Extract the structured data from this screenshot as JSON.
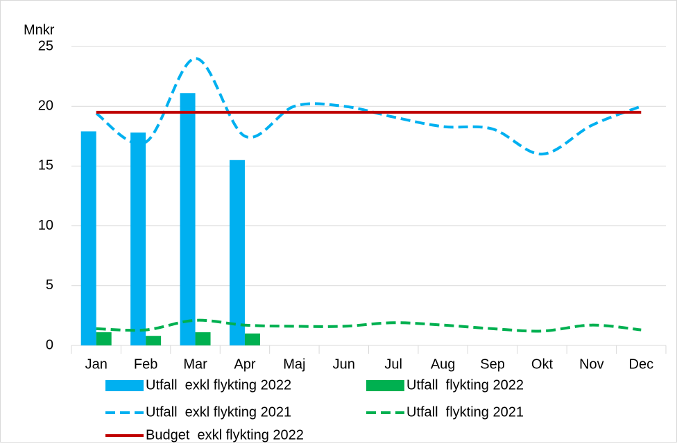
{
  "chart_data": {
    "type": "bar",
    "y_label": "Mnkr",
    "categories": [
      "Jan",
      "Feb",
      "Mar",
      "Apr",
      "Maj",
      "Jun",
      "Jul",
      "Aug",
      "Sep",
      "Okt",
      "Nov",
      "Dec"
    ],
    "ylim": [
      0,
      25
    ],
    "yticks": [
      0,
      5,
      10,
      15,
      20,
      25
    ],
    "grid": true,
    "series": [
      {
        "name": "Utfall  exkl flykting 2022",
        "type": "bar",
        "color": "#00b0f0",
        "values": [
          17.9,
          17.8,
          21.1,
          15.5,
          null,
          null,
          null,
          null,
          null,
          null,
          null,
          null
        ]
      },
      {
        "name": "Utfall  flykting 2022",
        "type": "bar",
        "color": "#00b050",
        "values": [
          1.1,
          0.8,
          1.1,
          1.0,
          null,
          null,
          null,
          null,
          null,
          null,
          null,
          null
        ]
      },
      {
        "name": "Utfall  exkl flykting 2021",
        "type": "line",
        "dashed": true,
        "color": "#00b0f0",
        "values": [
          19.4,
          17.0,
          24.0,
          17.5,
          20.0,
          20.0,
          19.1,
          18.3,
          18.1,
          16.0,
          18.4,
          20.0
        ]
      },
      {
        "name": "Utfall  flykting 2021",
        "type": "line",
        "dashed": true,
        "color": "#00b050",
        "values": [
          1.4,
          1.3,
          2.1,
          1.7,
          1.6,
          1.6,
          1.9,
          1.7,
          1.4,
          1.2,
          1.7,
          1.3
        ]
      },
      {
        "name": "Budget  exkl flykting 2022",
        "type": "line",
        "dashed": false,
        "color": "#c00000",
        "values": [
          19.5,
          19.5,
          19.5,
          19.5,
          19.5,
          19.5,
          19.5,
          19.5,
          19.5,
          19.5,
          19.5,
          19.5
        ]
      }
    ]
  }
}
